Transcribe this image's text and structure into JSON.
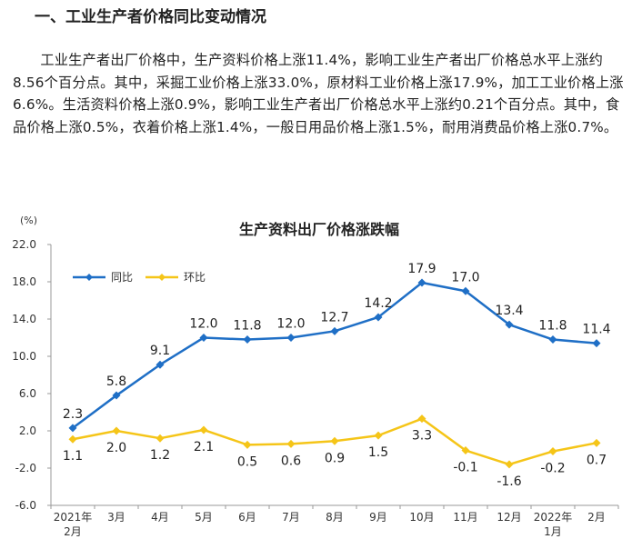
{
  "section": {
    "heading": "一、工业生产者价格同比变动情况",
    "paragraph": "工业生产者出厂价格中，生产资料价格上涨11.4%，影响工业生产者出厂价格总水平上涨约8.56个百分点。其中，采掘工业价格上涨33.0%，原材料工业价格上涨17.9%，加工工业价格上涨6.6%。生活资料价格上涨0.9%，影响工业生产者出厂价格总水平上涨约0.21个百分点。其中，食品价格上涨0.5%，衣着价格上涨1.4%，一般日用品价格上涨1.5%，耐用消费品价格上涨0.7%。"
  },
  "chart_data": {
    "type": "line",
    "title": "生产资料出厂价格涨跌幅",
    "unit_label": "(%)",
    "categories": [
      [
        "2021年",
        "2月"
      ],
      [
        "3月"
      ],
      [
        "4月"
      ],
      [
        "5月"
      ],
      [
        "6月"
      ],
      [
        "7月"
      ],
      [
        "8月"
      ],
      [
        "9月"
      ],
      [
        "10月"
      ],
      [
        "11月"
      ],
      [
        "12月"
      ],
      [
        "2022年",
        "1月"
      ],
      [
        "2月"
      ]
    ],
    "ylim": [
      -6.0,
      22.0
    ],
    "yticks": [
      "22.0",
      "18.0",
      "14.0",
      "10.0",
      "6.0",
      "2.0",
      "-2.0",
      "-6.0"
    ],
    "legend_position": "top-left",
    "grid": false,
    "series": [
      {
        "name": "同比",
        "color": "#1f6fc6",
        "values": [
          2.3,
          5.8,
          9.1,
          12.0,
          11.8,
          12.0,
          12.7,
          14.2,
          17.9,
          17.0,
          13.4,
          11.8,
          11.4
        ],
        "labels": [
          "2.3",
          "5.8",
          "9.1",
          "12.0",
          "11.8",
          "12.0",
          "12.7",
          "14.2",
          "17.9",
          "17.0",
          "13.4",
          "11.8",
          "11.4"
        ]
      },
      {
        "name": "环比",
        "color": "#f5c518",
        "values": [
          1.1,
          2.0,
          1.2,
          2.1,
          0.5,
          0.6,
          0.9,
          1.5,
          3.3,
          -0.1,
          -1.6,
          -0.2,
          0.7
        ],
        "labels": [
          "1.1",
          "2.0",
          "1.2",
          "2.1",
          "0.5",
          "0.6",
          "0.9",
          "1.5",
          "3.3",
          "-0.1",
          "-1.6",
          "-0.2",
          "0.7"
        ]
      }
    ]
  }
}
